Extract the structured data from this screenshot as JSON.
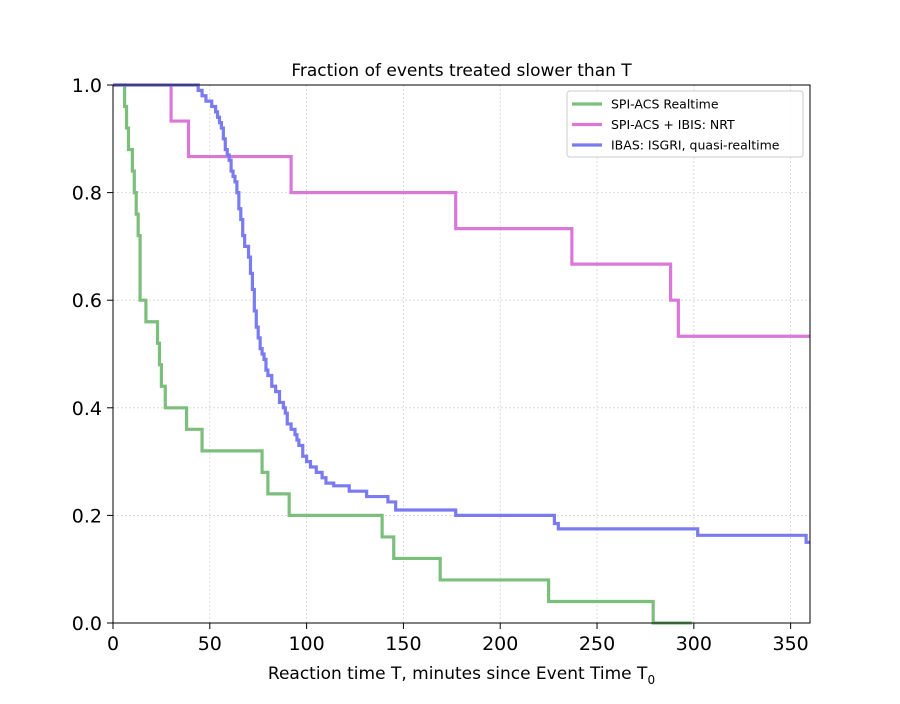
{
  "chart_data": {
    "type": "line",
    "title": "Fraction of events treated slower than T",
    "xlabel": "Reaction time T, minutes since Event Time T",
    "xlabel_subscript": "0",
    "ylabel": "",
    "xlim": [
      0,
      360
    ],
    "ylim": [
      0,
      1.0
    ],
    "xticks": [
      0,
      50,
      100,
      150,
      200,
      250,
      300,
      350
    ],
    "yticks": [
      0.0,
      0.2,
      0.4,
      0.6,
      0.8,
      1.0
    ],
    "xtick_labels": [
      "0",
      "50",
      "100",
      "150",
      "200",
      "250",
      "300",
      "350"
    ],
    "ytick_labels": [
      "0.0",
      "0.2",
      "0.4",
      "0.6",
      "0.8",
      "1.0"
    ],
    "grid": true,
    "legend_position": "top-right",
    "step": "post",
    "series": [
      {
        "name": "SPI-ACS Realtime",
        "color": "#7cbf7c",
        "x": [
          0,
          6,
          7,
          8,
          10,
          11,
          12,
          13,
          14,
          17,
          23,
          24,
          25,
          27,
          38,
          46,
          77,
          80,
          91,
          139,
          145,
          169,
          225,
          279,
          299
        ],
        "y": [
          1.0,
          0.96,
          0.92,
          0.88,
          0.84,
          0.8,
          0.76,
          0.72,
          0.6,
          0.56,
          0.52,
          0.48,
          0.44,
          0.4,
          0.36,
          0.32,
          0.28,
          0.24,
          0.2,
          0.16,
          0.12,
          0.08,
          0.04,
          0.0,
          0.0
        ]
      },
      {
        "name": "SPI-ACS + IBIS: NRT",
        "color": "#da78da",
        "x": [
          0,
          30,
          39,
          92,
          177,
          237,
          288,
          292,
          360
        ],
        "y": [
          1.0,
          0.933,
          0.867,
          0.8,
          0.733,
          0.667,
          0.6,
          0.533,
          0.533
        ]
      },
      {
        "name": "IBAS: ISGRI, quasi-realtime",
        "color": "#7b7bf0",
        "x": [
          0,
          44,
          46,
          48,
          51,
          53,
          54,
          55,
          56,
          57,
          58,
          59,
          60,
          61,
          62,
          63,
          64,
          65,
          66,
          67,
          68,
          70,
          71,
          72,
          73,
          74,
          75,
          76,
          77,
          78,
          79,
          80,
          82,
          84,
          86,
          88,
          89,
          90,
          92,
          94,
          95,
          96,
          98,
          100,
          102,
          105,
          108,
          110,
          114,
          122,
          131,
          142,
          146,
          177,
          228,
          230,
          238,
          302,
          358,
          360
        ],
        "y": [
          1.0,
          0.99,
          0.98,
          0.97,
          0.96,
          0.95,
          0.94,
          0.93,
          0.92,
          0.9,
          0.88,
          0.87,
          0.86,
          0.84,
          0.83,
          0.82,
          0.8,
          0.77,
          0.75,
          0.72,
          0.7,
          0.68,
          0.65,
          0.62,
          0.58,
          0.55,
          0.53,
          0.51,
          0.5,
          0.49,
          0.47,
          0.46,
          0.44,
          0.43,
          0.41,
          0.4,
          0.39,
          0.37,
          0.36,
          0.35,
          0.34,
          0.33,
          0.31,
          0.3,
          0.29,
          0.28,
          0.27,
          0.26,
          0.255,
          0.245,
          0.235,
          0.225,
          0.21,
          0.2,
          0.185,
          0.175,
          0.175,
          0.163,
          0.15,
          0.15
        ]
      }
    ]
  }
}
